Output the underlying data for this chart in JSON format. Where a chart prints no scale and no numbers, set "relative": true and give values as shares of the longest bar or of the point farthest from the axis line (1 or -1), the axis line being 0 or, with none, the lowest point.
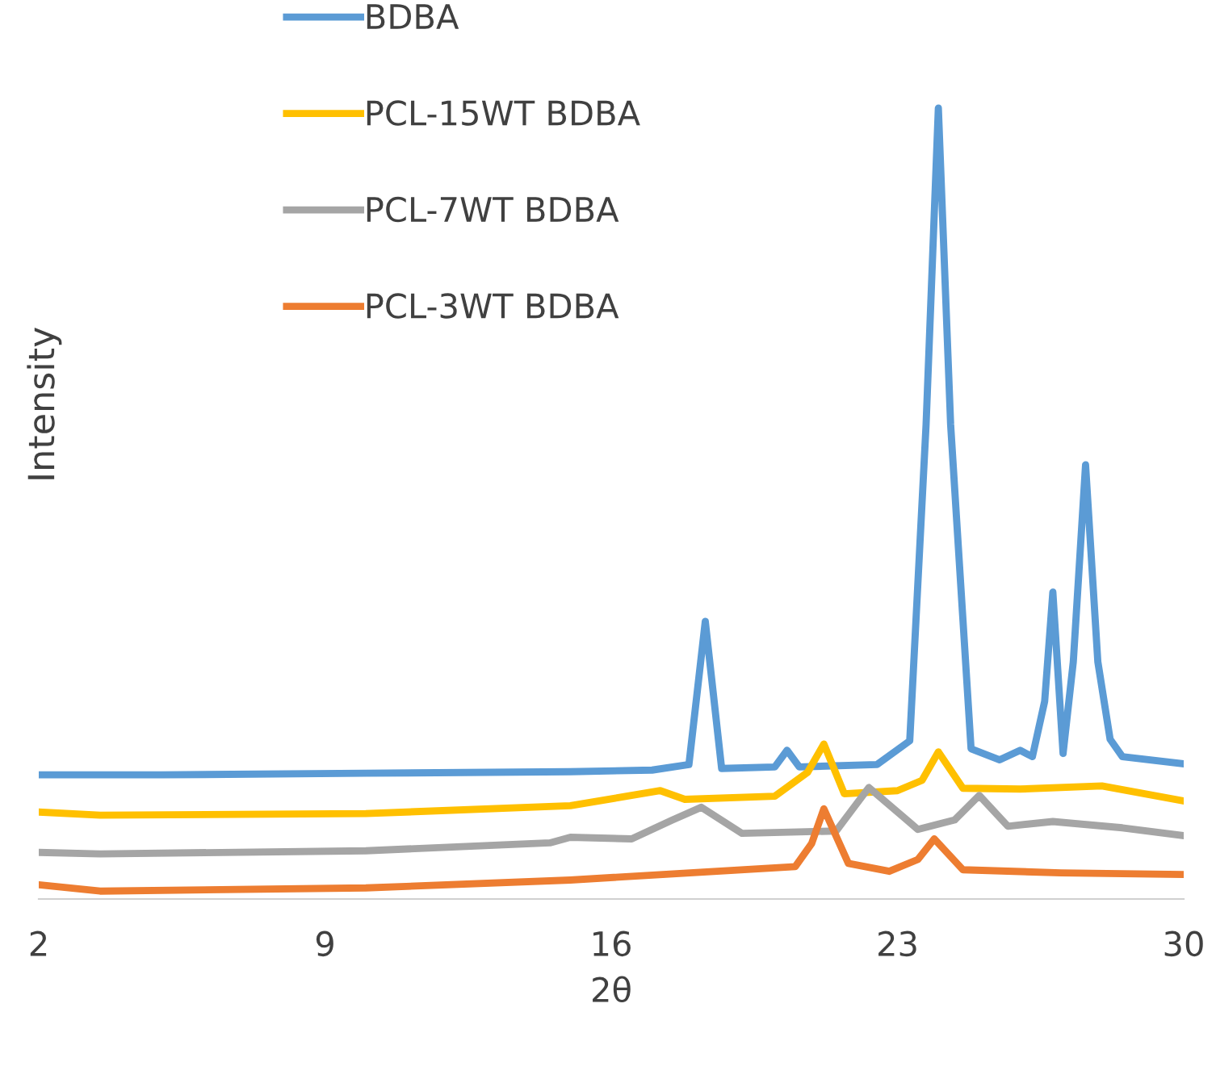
{
  "chart_data": {
    "type": "line",
    "relative": true,
    "xlabel": "2θ",
    "ylabel": "Intensity",
    "xlim": [
      2,
      30
    ],
    "xticks": [
      2,
      9,
      16,
      23,
      30
    ],
    "grid": false,
    "legend": "top left",
    "marker": "none",
    "line_style": "solid",
    "series": [
      {
        "name": "BDBA",
        "color": "#5b9bd5",
        "x": [
          2,
          5,
          10,
          15,
          17,
          17.9,
          18.3,
          18.7,
          20,
          20.3,
          20.6,
          22.5,
          23.3,
          23.7,
          24.0,
          24.3,
          24.8,
          25.5,
          26.0,
          26.3,
          26.6,
          26.8,
          27.05,
          27.3,
          27.6,
          27.9,
          28.2,
          28.5,
          30
        ],
        "values": [
          0.157,
          0.157,
          0.159,
          0.161,
          0.163,
          0.17,
          0.351,
          0.165,
          0.167,
          0.188,
          0.167,
          0.17,
          0.2,
          0.6,
          1.0,
          0.6,
          0.19,
          0.176,
          0.188,
          0.18,
          0.25,
          0.388,
          0.184,
          0.3,
          0.549,
          0.3,
          0.202,
          0.18,
          0.171
        ]
      },
      {
        "name": "PCL-15WT BDBA",
        "color": "#ffc000",
        "x": [
          2,
          3.5,
          10,
          15,
          17.2,
          17.8,
          20,
          20.8,
          21.2,
          21.7,
          23,
          23.6,
          24.0,
          24.6,
          26,
          28.0,
          30
        ],
        "values": [
          0.11,
          0.106,
          0.108,
          0.118,
          0.137,
          0.126,
          0.13,
          0.16,
          0.196,
          0.133,
          0.137,
          0.15,
          0.186,
          0.14,
          0.139,
          0.143,
          0.124
        ]
      },
      {
        "name": "PCL-7WT BDBA",
        "color": "#a5a5a5",
        "x": [
          2,
          3.5,
          10,
          14.5,
          15,
          16.5,
          17.5,
          18.2,
          19.2,
          21.5,
          22.3,
          23.5,
          24.4,
          25.0,
          25.7,
          26.8,
          28.5,
          30
        ],
        "values": [
          0.059,
          0.057,
          0.061,
          0.071,
          0.078,
          0.076,
          0.1,
          0.116,
          0.083,
          0.086,
          0.141,
          0.088,
          0.1,
          0.131,
          0.092,
          0.098,
          0.09,
          0.08
        ]
      },
      {
        "name": "PCL-3WT BDBA",
        "color": "#ed7d31",
        "x": [
          2,
          3.5,
          10,
          15,
          20.5,
          20.9,
          21.2,
          21.8,
          22.8,
          23.5,
          23.9,
          24.6,
          27,
          30
        ],
        "values": [
          0.018,
          0.01,
          0.014,
          0.024,
          0.041,
          0.07,
          0.114,
          0.045,
          0.035,
          0.05,
          0.076,
          0.037,
          0.033,
          0.031
        ]
      }
    ]
  }
}
